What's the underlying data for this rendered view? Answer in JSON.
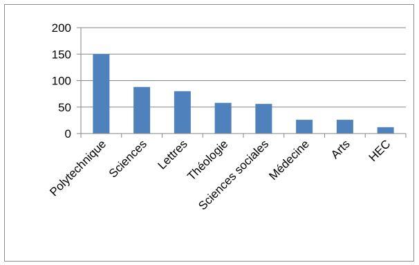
{
  "chart_data": {
    "type": "bar",
    "categories": [
      "Polytechnique",
      "Sciences",
      "Lettres",
      "Théologie",
      "Sciences sociales",
      "Médecine",
      "Arts",
      "HEC"
    ],
    "values": [
      150,
      88,
      80,
      58,
      56,
      26,
      26,
      12
    ],
    "ylim": [
      0,
      200
    ],
    "yticks": [
      0,
      50,
      100,
      150,
      200
    ],
    "ytick_labels": [
      "0",
      "50",
      "100",
      "150",
      "200"
    ],
    "grid": true,
    "legend": "none",
    "bar_color": "#4f81bd",
    "grid_color": "#868686",
    "axis_color": "#868686"
  }
}
